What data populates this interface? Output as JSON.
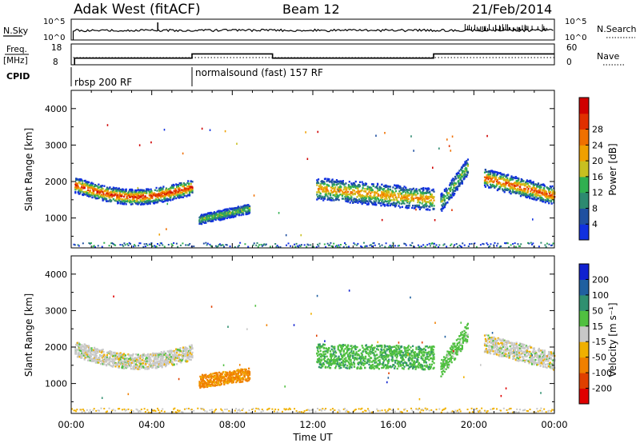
{
  "header": {
    "site": "Adak West (fitACF)",
    "beam": "Beam 12",
    "date": "21/Feb/2014"
  },
  "nsky_panel": {
    "label": "N.Sky",
    "left_ticks": [
      "10^5",
      "10^0"
    ],
    "right_ticks": [
      "10^5",
      "10^0"
    ],
    "right_label": "N.Search"
  },
  "freq_panel": {
    "label_line1": "Freq.",
    "label_line2": "[MHz]",
    "left_ticks": [
      "18",
      "8"
    ],
    "right_ticks": [
      "60",
      "0"
    ],
    "right_label": "Nave",
    "freq_mhz_steps": [
      {
        "from": "00:10",
        "to": "06:00",
        "value": 11.2
      },
      {
        "from": "06:00",
        "to": "10:00",
        "value": 13.2
      },
      {
        "from": "10:00",
        "to": "18:00",
        "value": 11.2
      },
      {
        "from": "18:00",
        "to": "24:00",
        "value": 13.2
      }
    ]
  },
  "cpid": {
    "label": "CPID",
    "segments": [
      {
        "start": "00:00",
        "text": "rbsp 200 RF"
      },
      {
        "start": "06:00",
        "text": "normalsound (fast) 157 RF"
      }
    ]
  },
  "chart_data": [
    {
      "type": "heatmap",
      "name": "power",
      "ylabel": "Slant Range [km]",
      "yticks": [
        "1000",
        "2000",
        "3000",
        "4000"
      ],
      "ylim": [
        180,
        4500
      ],
      "xlim": [
        "00:00",
        "24:00"
      ],
      "colorbar": {
        "label": "Power [dB]",
        "ticks": [
          "4",
          "8",
          "12",
          "16",
          "20",
          "24",
          "28"
        ],
        "colors": [
          "#1030e0",
          "#2050a0",
          "#2d8a70",
          "#30b050",
          "#c8c020",
          "#f0a000",
          "#f07000",
          "#e03000",
          "#d00000"
        ]
      },
      "regions": [
        {
          "t0": "00:10",
          "t1": "06:00",
          "r_center_start": 1900,
          "r_center_end": 1850,
          "dip": 300,
          "width": 420,
          "peak_db": 26
        },
        {
          "t0": "06:20",
          "t1": "08:50",
          "r_center_start": 950,
          "r_center_end": 1250,
          "dip": 0,
          "width": 260,
          "peak_db": 14
        },
        {
          "t0": "12:10",
          "t1": "18:00",
          "r_center_start": 1800,
          "r_center_end": 1500,
          "dip": 0,
          "width": 600,
          "peak_db": 20
        },
        {
          "t0": "18:20",
          "t1": "19:40",
          "r_center_start": 1400,
          "r_center_end": 2400,
          "dip": 0,
          "width": 500,
          "peak_db": 14
        },
        {
          "t0": "20:30",
          "t1": "24:00",
          "r_center_start": 2100,
          "r_center_end": 1600,
          "dip": 0,
          "width": 500,
          "peak_db": 24
        }
      ]
    },
    {
      "type": "heatmap",
      "name": "velocity",
      "ylabel": "Slant Range [km]",
      "yticks": [
        "1000",
        "2000",
        "3000",
        "4000"
      ],
      "ylim": [
        180,
        4500
      ],
      "xlabel": "Time UT",
      "xticks": [
        "00:00",
        "04:00",
        "08:00",
        "12:00",
        "16:00",
        "20:00",
        "00:00"
      ],
      "xlim": [
        "00:00",
        "24:00"
      ],
      "colorbar": {
        "label": "Velocity [m s⁻¹]",
        "ticks": [
          "200",
          "100",
          "50",
          "15",
          "-15",
          "-50",
          "-100",
          "-200"
        ],
        "colors": [
          "#1020d0",
          "#2060a0",
          "#309070",
          "#50c040",
          "#c8c8c8",
          "#f0b000",
          "#f08000",
          "#e04000",
          "#e00000"
        ]
      },
      "regions": [
        {
          "t0": "00:10",
          "t1": "06:00",
          "r_center_start": 1950,
          "r_center_end": 1850,
          "dip": 300,
          "width": 420,
          "velocity": 0
        },
        {
          "t0": "06:20",
          "t1": "08:50",
          "r_center_start": 1050,
          "r_center_end": 1250,
          "dip": 0,
          "width": 350,
          "velocity": -60
        },
        {
          "t0": "12:10",
          "t1": "18:00",
          "r_center_start": 1750,
          "r_center_end": 1700,
          "dip": 0,
          "width": 650,
          "velocity": 40
        },
        {
          "t0": "18:20",
          "t1": "19:40",
          "r_center_start": 1400,
          "r_center_end": 2400,
          "dip": 0,
          "width": 500,
          "velocity": 30
        },
        {
          "t0": "20:30",
          "t1": "24:00",
          "r_center_start": 2100,
          "r_center_end": 1600,
          "dip": 0,
          "width": 500,
          "velocity": 0
        }
      ]
    }
  ]
}
